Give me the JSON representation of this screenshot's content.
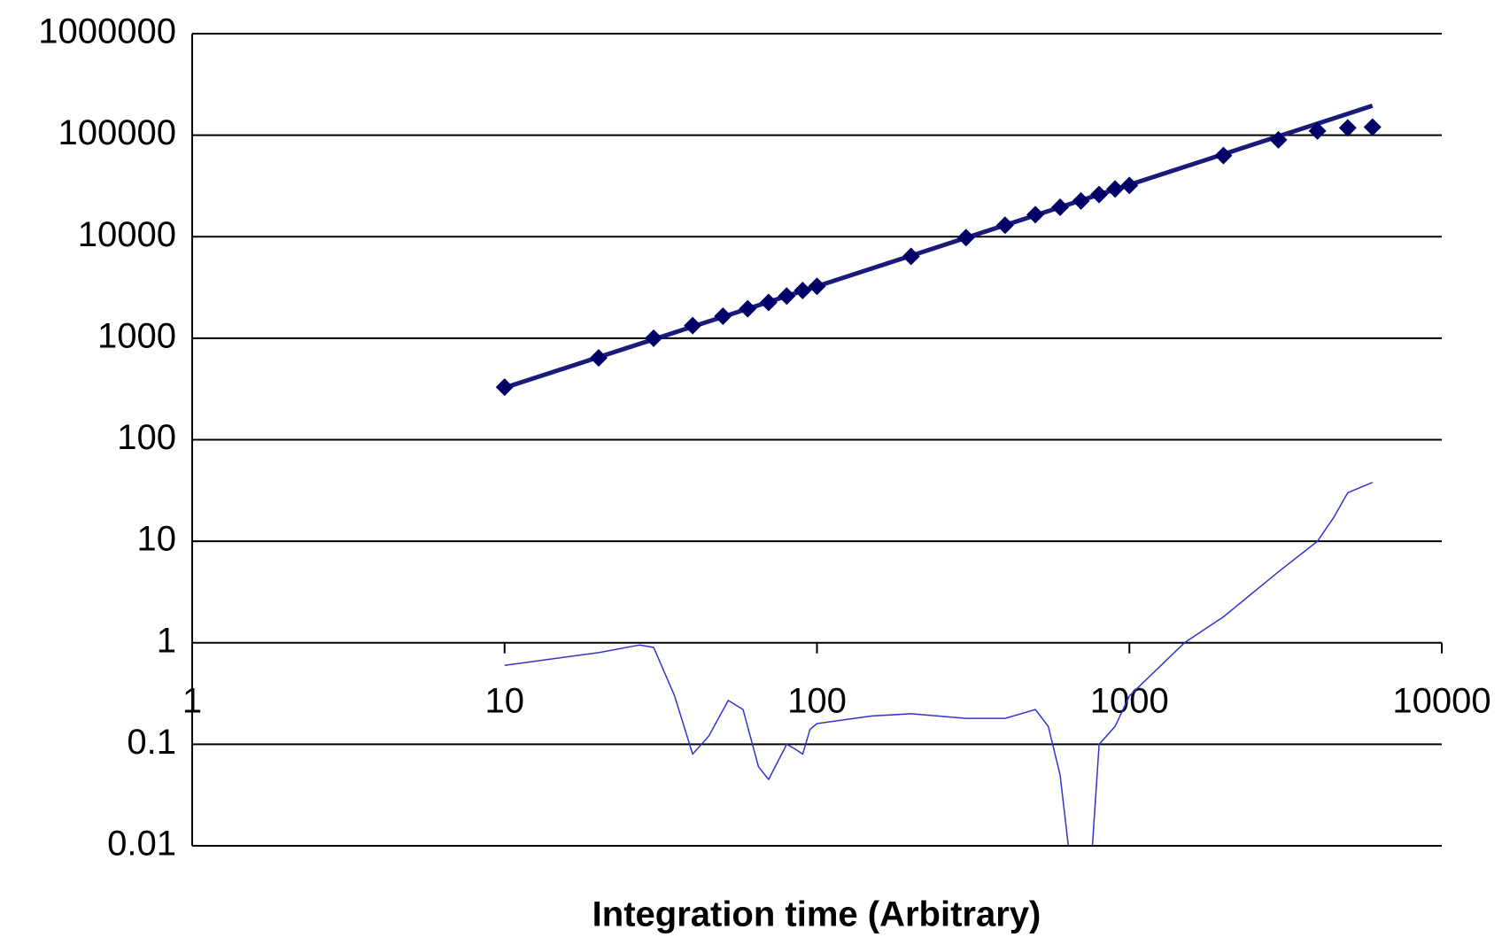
{
  "chart_data": {
    "type": "scatter",
    "xlabel": "Integration time (Arbitrary)",
    "xlog": true,
    "ylog": true,
    "grid": true,
    "xlim": [
      1,
      10000
    ],
    "xticks": [
      1,
      10,
      100,
      1000,
      10000
    ],
    "ylim": [
      0.01,
      1000000
    ],
    "yticks": [
      0.01,
      0.1,
      1,
      10,
      100,
      1000,
      10000,
      100000,
      1000000
    ],
    "series": [
      {
        "mode": "line",
        "color": "#1a1a7a",
        "line_width": 5,
        "x": [
          10,
          20,
          30,
          40,
          50,
          60,
          70,
          80,
          90,
          100,
          200,
          300,
          400,
          500,
          600,
          700,
          800,
          900,
          1000,
          2000,
          3000,
          4000,
          5000,
          6000
        ],
        "values": [
          325,
          650,
          975,
          1300,
          1625,
          1950,
          2275,
          2600,
          2925,
          3250,
          6500,
          9750,
          13000,
          16250,
          19500,
          22750,
          26000,
          29250,
          32500,
          65000,
          97500,
          130000,
          162500,
          195000
        ]
      },
      {
        "mode": "markers",
        "marker": "diamond",
        "color": "#000066",
        "x": [
          10,
          20,
          30,
          40,
          50,
          60,
          70,
          80,
          90,
          100,
          200,
          300,
          400,
          500,
          600,
          700,
          800,
          900,
          1000,
          2000,
          3000,
          4000,
          5000,
          6000
        ],
        "values": [
          330,
          640,
          1000,
          1330,
          1650,
          1950,
          2250,
          2600,
          2950,
          3250,
          6400,
          9800,
          13000,
          16500,
          19500,
          22500,
          26000,
          29500,
          32000,
          63000,
          90000,
          110000,
          118000,
          120000
        ]
      },
      {
        "mode": "line",
        "color": "#3333cc",
        "line_width": 1.5,
        "x": [
          10,
          20,
          27,
          30,
          35,
          40,
          45,
          52,
          58,
          65,
          70,
          80,
          85,
          90,
          95,
          100,
          150,
          200,
          300,
          400,
          500,
          550,
          600,
          650,
          750,
          800,
          900,
          1000,
          1500,
          2000,
          3000,
          4000,
          4500,
          5000,
          6000
        ],
        "values": [
          0.6,
          0.8,
          0.95,
          0.9,
          0.3,
          0.08,
          0.12,
          0.27,
          0.22,
          0.06,
          0.045,
          0.1,
          0.09,
          0.08,
          0.14,
          0.16,
          0.19,
          0.2,
          0.18,
          0.18,
          0.22,
          0.15,
          0.05,
          0.006,
          0.005,
          0.1,
          0.15,
          0.3,
          1,
          1.8,
          5,
          10,
          17,
          30,
          38
        ]
      }
    ]
  }
}
